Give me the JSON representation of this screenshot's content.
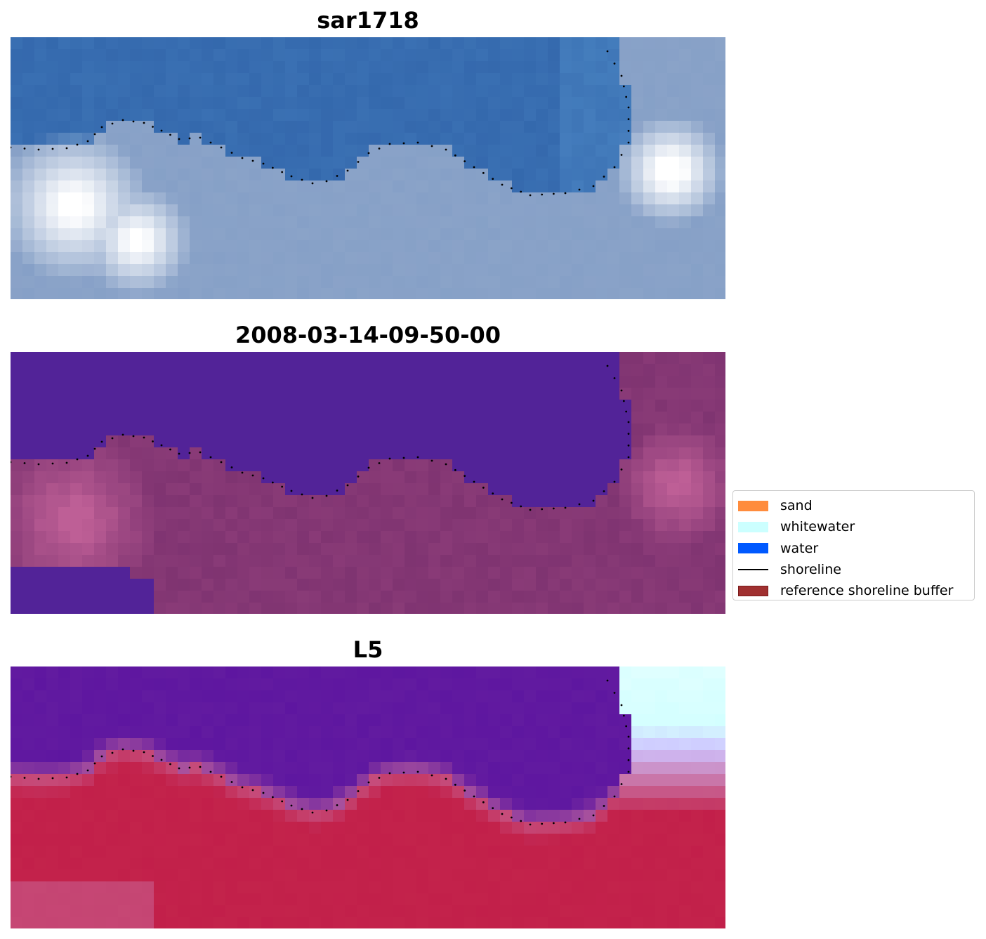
{
  "panels": [
    {
      "title": "sar1718",
      "style": "rgb"
    },
    {
      "title": "2008-03-14-09-50-00",
      "style": "classified"
    },
    {
      "title": "L5",
      "style": "index"
    }
  ],
  "legend": {
    "items": [
      {
        "label": "sand",
        "kind": "patch",
        "color": "#ff8c3d"
      },
      {
        "label": "whitewater",
        "kind": "patch",
        "color": "#ccffff"
      },
      {
        "label": "water",
        "kind": "patch",
        "color": "#0059ff"
      },
      {
        "label": "shoreline",
        "kind": "line",
        "color": "#000000"
      },
      {
        "label": "reference shoreline buffer",
        "kind": "patch",
        "color": "#a03030",
        "edge": "#7a1a1a"
      }
    ]
  },
  "colors": {
    "water_class": "#522398",
    "rgb_water": "#2f62a8",
    "rgb_land": "#7f9cc4",
    "rgb_bright": "#ffffff",
    "index_water": "#5a12a0",
    "index_land": "#c01c48",
    "index_mid": "#c86a9c",
    "shoreline_dots": "#000000"
  }
}
